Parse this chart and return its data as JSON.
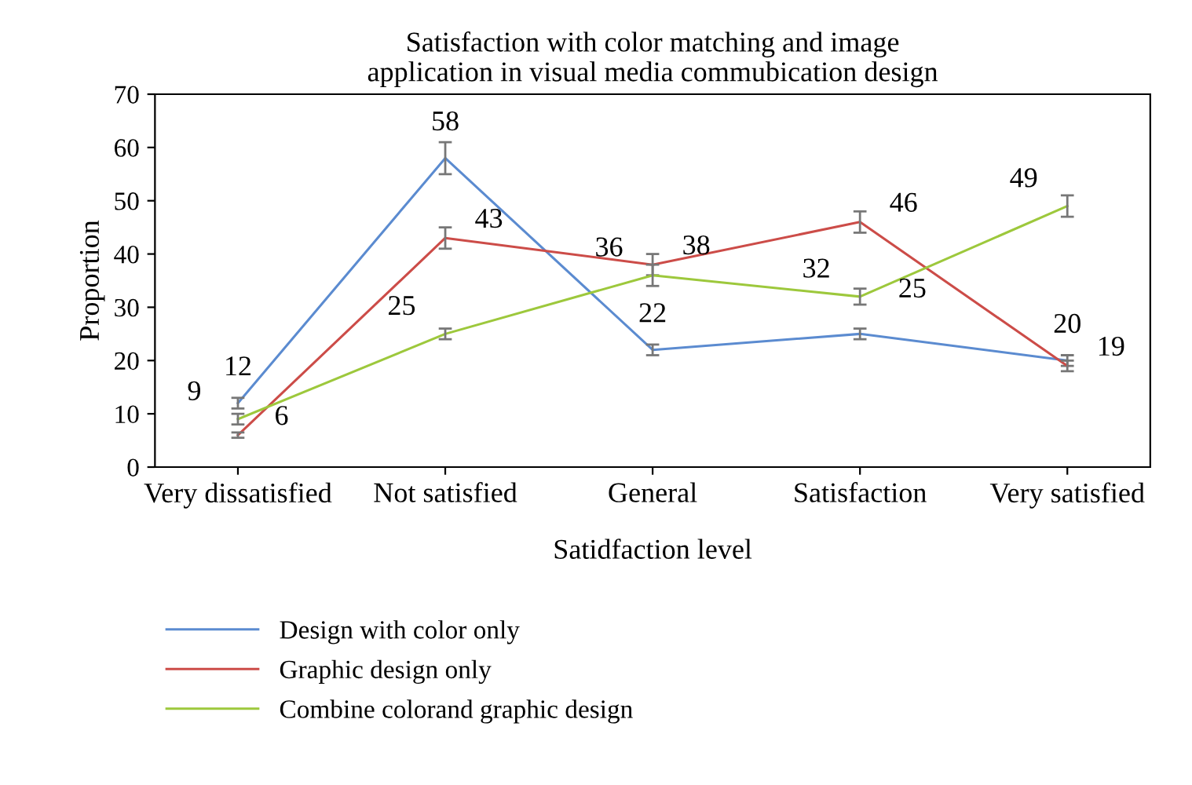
{
  "chart_data": {
    "type": "line",
    "title": "Satisfaction with color matching and image\napplication in visual media commubication design",
    "xlabel": "Satidfaction level",
    "ylabel": "Proportion",
    "categories": [
      "Very dissatisfied",
      "Not satisfied",
      "General",
      "Satisfaction",
      "Very satisfied"
    ],
    "series": [
      {
        "name": "Design with color only",
        "color": "#5b8bd0",
        "values": [
          12,
          58,
          22,
          25,
          20
        ],
        "errors": [
          1,
          3,
          1,
          1,
          1
        ]
      },
      {
        "name": "Graphic design only",
        "color": "#cc4c48",
        "values": [
          6,
          43,
          38,
          46,
          19
        ],
        "errors": [
          0.5,
          2,
          2,
          2,
          1
        ]
      },
      {
        "name": "Combine colorand graphic design",
        "color": "#9dc83c",
        "values": [
          9,
          25,
          36,
          32,
          49
        ],
        "errors": [
          1,
          1,
          2,
          1.5,
          2
        ]
      }
    ],
    "data_labels": true,
    "ylim": [
      0,
      70
    ],
    "yticks": [
      0,
      10,
      20,
      30,
      40,
      50,
      60,
      70
    ],
    "grid": false,
    "legend": "bottom",
    "marker": "none",
    "line_style": "solid"
  }
}
